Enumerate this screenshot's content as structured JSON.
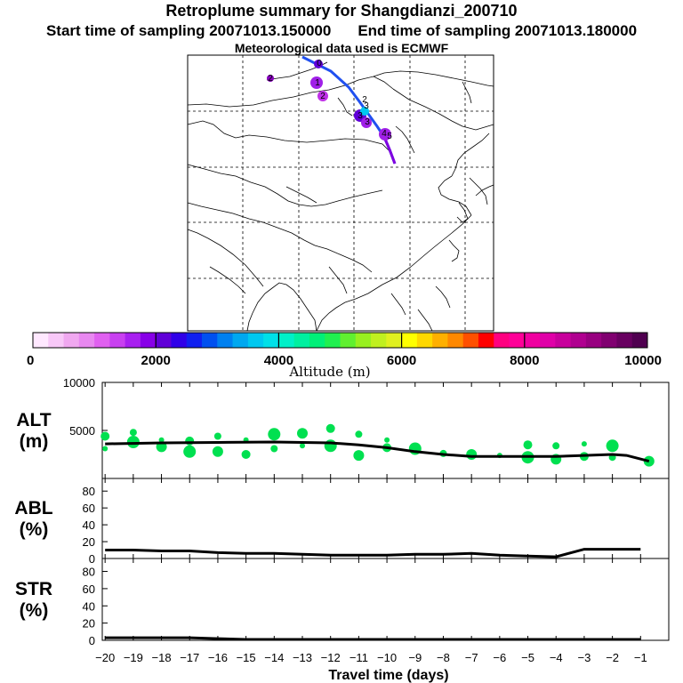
{
  "title": "Retroplume summary for Shangdianzi_200710",
  "start_label": "Start time of sampling 20071013.150000",
  "end_label": "End time of sampling 20071013.180000",
  "met_label": "Meteorological data used is ECMWF",
  "colorbar": {
    "label": "Altitude (m)",
    "min": 0,
    "max": 10000,
    "tick_labels": [
      "0",
      "2000",
      "4000",
      "6000",
      "8000",
      "10000"
    ],
    "colors": [
      "#ffe8ff",
      "#f8c8f8",
      "#f0a8f0",
      "#e888f0",
      "#e060f0",
      "#c840f0",
      "#a820f0",
      "#8800e8",
      "#6000d8",
      "#3000e8",
      "#1020f0",
      "#0050f0",
      "#0080f0",
      "#00a8f0",
      "#00c8f0",
      "#00e0e8",
      "#00f0c8",
      "#00f0a0",
      "#00f078",
      "#20f050",
      "#60f030",
      "#98f020",
      "#c0f020",
      "#e0f020",
      "#ffff00",
      "#ffd800",
      "#ffb000",
      "#ff8800",
      "#ff5000",
      "#ff0000",
      "#ff0080",
      "#ff0098",
      "#f000a0",
      "#e000a8",
      "#c8009c",
      "#b00090",
      "#980080",
      "#800070",
      "#680060",
      "#500050"
    ]
  },
  "map": {
    "trajectory_labels": [
      "0",
      "1",
      "2",
      "2",
      "2",
      "3",
      "3",
      "3",
      "4",
      "5"
    ]
  },
  "xaxis": {
    "label": "Travel time (days)",
    "ticks": [
      -20,
      -19,
      -18,
      -17,
      -16,
      -15,
      -14,
      -13,
      -12,
      -11,
      -10,
      -9,
      -8,
      -7,
      -6,
      -5,
      -4,
      -3,
      -2,
      -1
    ],
    "xlim": [
      -20.1,
      0
    ]
  },
  "chart_data": [
    {
      "type": "line",
      "panel": "ALT",
      "ylabel": "ALT\n(m)",
      "ylabel_top": "ALT",
      "ylabel_unit": "(m)",
      "ylim": [
        0,
        10000
      ],
      "yticks": [
        5000,
        10000
      ],
      "ytick_labels": [
        "5000",
        "10000"
      ],
      "series": [
        {
          "name": "median altitude",
          "x": [
            -20,
            -18,
            -16,
            -14,
            -12,
            -11,
            -10,
            -9,
            -8,
            -7,
            -6,
            -5,
            -4,
            -3,
            -2,
            -1.5,
            -0.7
          ],
          "values": [
            3600,
            3700,
            3750,
            3800,
            3700,
            3500,
            3200,
            2800,
            2500,
            2300,
            2300,
            2300,
            2300,
            2400,
            2500,
            2400,
            1800
          ]
        },
        {
          "name": "cluster altitudes",
          "marker": "dot",
          "color": "#00e050",
          "x": [
            -20,
            -20,
            -19,
            -19,
            -18,
            -18,
            -17,
            -17,
            -16,
            -16,
            -15,
            -15,
            -14,
            -14,
            -13,
            -13,
            -12,
            -12,
            -11,
            -11,
            -10,
            -10,
            -9,
            -8,
            -7,
            -6,
            -5,
            -5,
            -4,
            -4,
            -3,
            -3,
            -2,
            -2,
            -0.7
          ],
          "values": [
            3100,
            4400,
            3800,
            4800,
            3300,
            4000,
            3900,
            2800,
            4400,
            2800,
            4000,
            2500,
            4600,
            3100,
            4700,
            3400,
            5200,
            3400,
            4600,
            2400,
            4000,
            3200,
            3100,
            2600,
            2500,
            2400,
            3500,
            2200,
            3400,
            2000,
            3600,
            2300,
            3400,
            2200,
            1800
          ]
        }
      ]
    },
    {
      "type": "line",
      "panel": "ABL",
      "ylabel_top": "ABL",
      "ylabel_unit": "(%)",
      "ylim": [
        0,
        95
      ],
      "yticks": [
        0,
        20,
        40,
        60,
        80
      ],
      "ytick_labels": [
        "0",
        "20",
        "40",
        "60",
        "80"
      ],
      "series": [
        {
          "name": "ABL fraction",
          "x": [
            -20,
            -19,
            -18,
            -17,
            -16,
            -15,
            -14,
            -13,
            -12,
            -11,
            -10,
            -9,
            -8,
            -7,
            -6,
            -5,
            -4,
            -3,
            -2,
            -1
          ],
          "values": [
            10,
            10,
            9,
            9,
            7,
            6,
            6,
            5,
            4,
            4,
            4,
            5,
            5,
            6,
            4,
            3,
            2,
            11,
            11,
            11
          ]
        }
      ]
    },
    {
      "type": "line",
      "panel": "STR",
      "ylabel_top": "STR",
      "ylabel_unit": "(%)",
      "ylim": [
        0,
        95
      ],
      "yticks": [
        0,
        20,
        40,
        60,
        80
      ],
      "ytick_labels": [
        "0",
        "20",
        "40",
        "60",
        "80"
      ],
      "series": [
        {
          "name": "STR fraction",
          "x": [
            -20,
            -19,
            -18,
            -17,
            -16,
            -15,
            -14,
            -13,
            -12,
            -11,
            -10,
            -9,
            -8,
            -7,
            -6,
            -5,
            -4,
            -3,
            -2,
            -1
          ],
          "values": [
            3,
            3,
            3,
            3,
            2,
            1,
            1,
            1,
            1,
            1,
            1,
            1,
            1,
            1,
            1,
            1,
            1,
            1,
            1,
            1
          ]
        }
      ]
    }
  ]
}
